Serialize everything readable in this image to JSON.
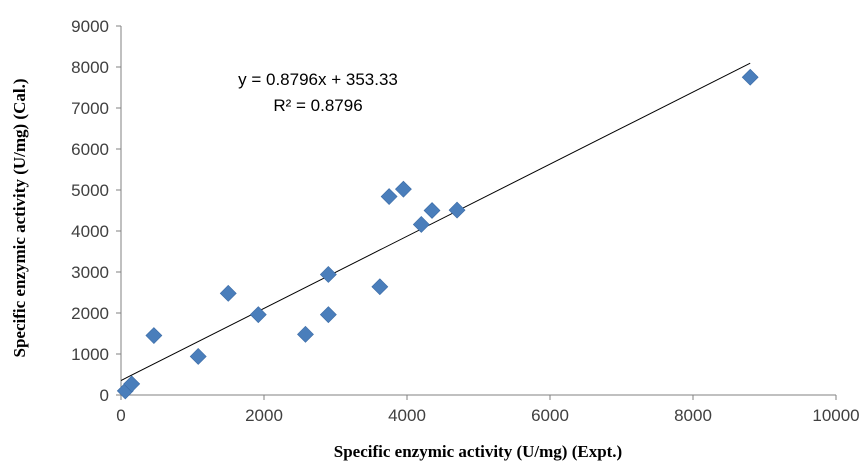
{
  "chart_data": {
    "type": "scatter",
    "xlabel": "Specific enzymic activity (U/mg) (Expt.)",
    "ylabel": "Specific enzymic activity (U/mg) (Cal.)",
    "xlim": [
      0,
      10000
    ],
    "ylim": [
      0,
      9000
    ],
    "xticks": [
      "0",
      "2000",
      "4000",
      "6000",
      "8000",
      "10000"
    ],
    "yticks": [
      "0",
      "1000",
      "2000",
      "3000",
      "4000",
      "5000",
      "6000",
      "7000",
      "8000",
      "9000"
    ],
    "grid": false,
    "marker_color": "#4a7ebb",
    "trendline": {
      "slope": 0.8796,
      "intercept": 353.33,
      "x_range": [
        0,
        8800
      ]
    },
    "annotations": {
      "equation": "y = 0.8796x + 353.33",
      "r_squared": "R² = 0.8796"
    },
    "points": [
      {
        "x": 60,
        "y": 100
      },
      {
        "x": 150,
        "y": 270
      },
      {
        "x": 460,
        "y": 1450
      },
      {
        "x": 1080,
        "y": 940
      },
      {
        "x": 1500,
        "y": 2480
      },
      {
        "x": 1920,
        "y": 1960
      },
      {
        "x": 2580,
        "y": 1480
      },
      {
        "x": 2900,
        "y": 1960
      },
      {
        "x": 2900,
        "y": 2940
      },
      {
        "x": 3620,
        "y": 2640
      },
      {
        "x": 3750,
        "y": 4840
      },
      {
        "x": 3950,
        "y": 5020
      },
      {
        "x": 4200,
        "y": 4160
      },
      {
        "x": 4350,
        "y": 4500
      },
      {
        "x": 4700,
        "y": 4510
      },
      {
        "x": 8800,
        "y": 7750
      }
    ]
  }
}
